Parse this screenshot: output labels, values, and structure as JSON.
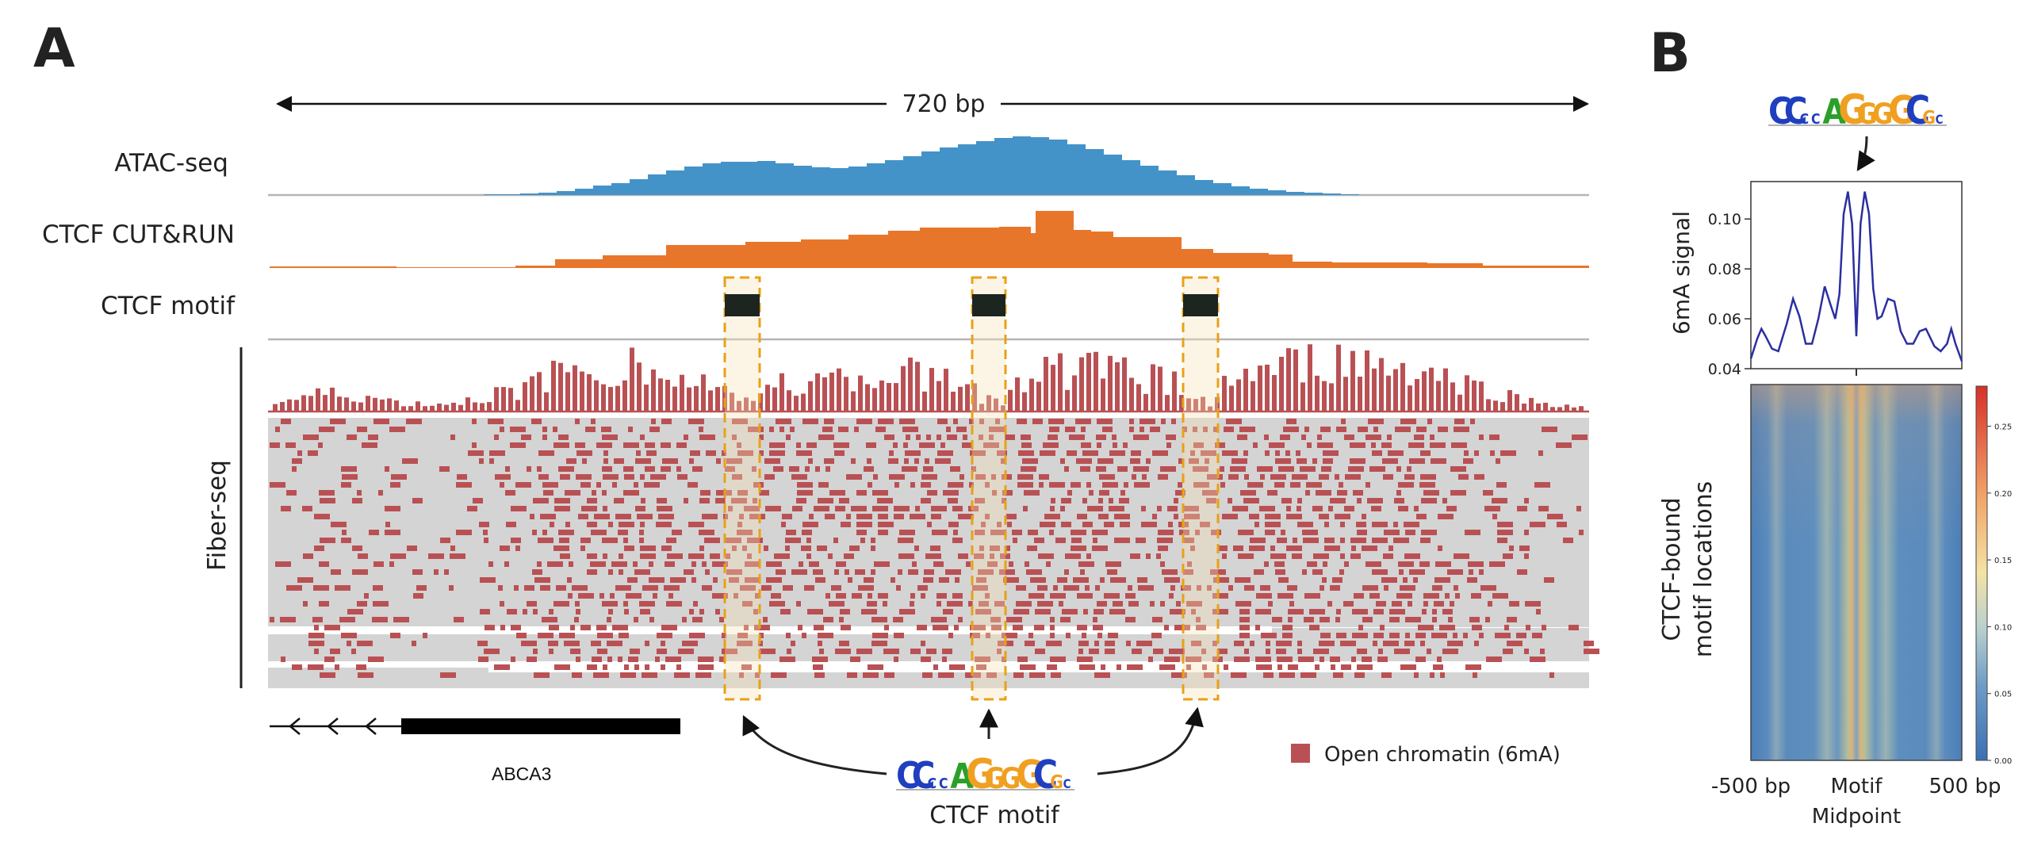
{
  "panels": {
    "a": "A",
    "b": "B"
  },
  "span_label": "720 bp",
  "tracks": {
    "atac": "ATAC-seq",
    "ctcf_cutrun": "CTCF CUT&RUN",
    "ctcf_motif": "CTCF motif",
    "fiberseq": "Fiber-seq"
  },
  "gene": {
    "name": "ABCA3"
  },
  "motif_caption": "CTCF motif",
  "legend": {
    "open_chromatin": "Open chromatin (6mA)"
  },
  "colors": {
    "atac": "#4393c9",
    "cutrun": "#e8762a",
    "motif_box": "#e8a117",
    "six_ma": "#b95154",
    "fiber_bg": "#d4d4d4",
    "motif_block": "#1d2520",
    "profile_line": "#2b2fa0"
  },
  "motif_logo_letters": [
    "C",
    "C",
    "C",
    "C",
    "A",
    "G",
    "G",
    "G",
    "G",
    "C",
    "G",
    "C"
  ],
  "chart_data": [
    {
      "type": "line",
      "ylabel": "6mA signal",
      "ylim": [
        0.04,
        0.115
      ],
      "yticks": [
        "0.04",
        "0.06",
        "0.08",
        "0.10"
      ],
      "x": [
        -500,
        -470,
        -450,
        -430,
        -400,
        -370,
        -330,
        -300,
        -270,
        -240,
        -210,
        -180,
        -150,
        -120,
        -100,
        -80,
        -60,
        -40,
        -20,
        0,
        20,
        40,
        60,
        80,
        100,
        120,
        150,
        180,
        210,
        240,
        270,
        300,
        330,
        370,
        400,
        430,
        450,
        470,
        500
      ],
      "values": [
        0.044,
        0.052,
        0.056,
        0.053,
        0.048,
        0.047,
        0.058,
        0.068,
        0.061,
        0.05,
        0.05,
        0.06,
        0.073,
        0.065,
        0.06,
        0.07,
        0.102,
        0.111,
        0.098,
        0.053,
        0.098,
        0.111,
        0.102,
        0.072,
        0.06,
        0.061,
        0.068,
        0.067,
        0.055,
        0.05,
        0.05,
        0.055,
        0.056,
        0.049,
        0.047,
        0.05,
        0.056,
        0.05,
        0.043
      ]
    },
    {
      "type": "heatmap",
      "ylabel": "CTCF-bound motif locations",
      "xticks": [
        "-500 bp",
        "Motif Midpoint",
        "500 bp"
      ],
      "colorbar_ticks": [
        "0.00",
        "0.05",
        "0.10",
        "0.15",
        "0.20",
        "0.25"
      ],
      "colorbar_range": [
        0,
        0.28
      ]
    }
  ]
}
